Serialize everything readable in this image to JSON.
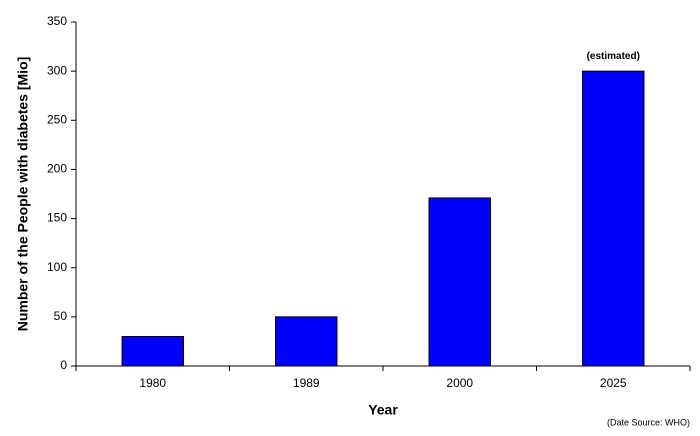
{
  "chart_data": {
    "type": "bar",
    "x_label": "Year",
    "y_label": "Number of the People with diabetes [Mio]",
    "categories": [
      "1980",
      "1989",
      "2000",
      "2025"
    ],
    "values": [
      30,
      50,
      171,
      300
    ],
    "color": "#0000ff",
    "ylim": [
      0,
      350
    ],
    "yticks": [
      0,
      50,
      100,
      150,
      200,
      250,
      300,
      350
    ],
    "grid": false,
    "annotations": [
      {
        "text": "(estimated)",
        "category": "2025"
      }
    ],
    "source": "(Date Source: WHO)"
  }
}
